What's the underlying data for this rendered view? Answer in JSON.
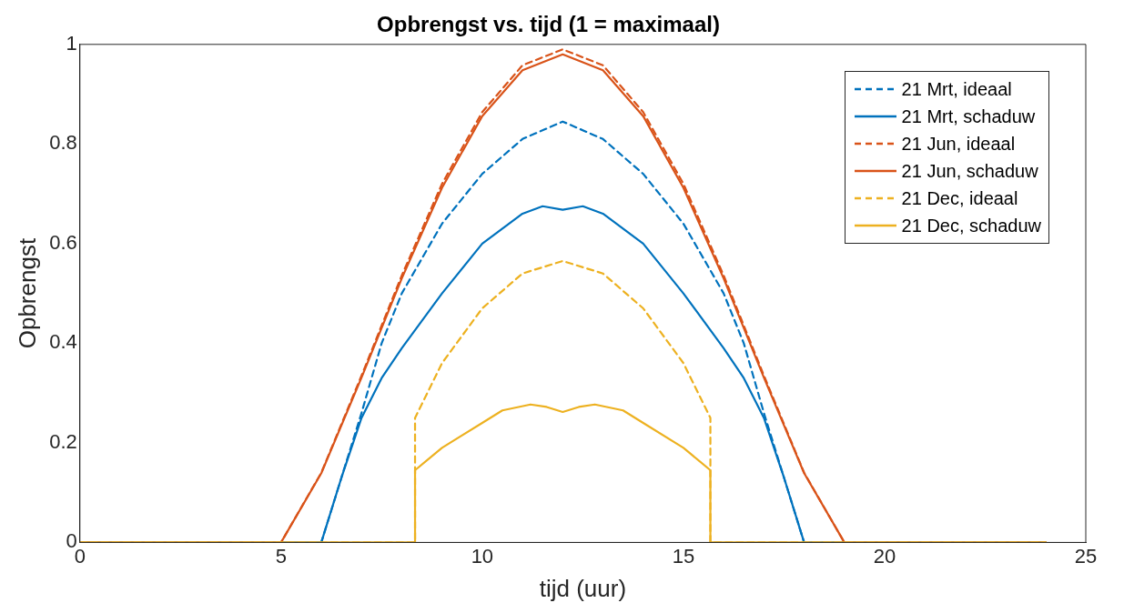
{
  "chart_data": {
    "type": "line",
    "title": "Opbrengst vs. tijd (1 = maximaal)",
    "xlabel": "tijd (uur)",
    "ylabel": "Opbrengst",
    "xlim": [
      0,
      25
    ],
    "ylim": [
      0,
      1
    ],
    "xticks": [
      0,
      5,
      10,
      15,
      20,
      25
    ],
    "yticks": [
      0,
      0.2,
      0.4,
      0.6,
      0.8,
      1
    ],
    "grid": false,
    "legend": "top right",
    "marker": "none",
    "series": [
      {
        "name": "21 Mrt, ideaal",
        "color": "#0072bd",
        "line_style": "dashed",
        "x": [
          0,
          6,
          6.5,
          7,
          7.5,
          8,
          9,
          10,
          11,
          12,
          13,
          14,
          15,
          16,
          16.5,
          17,
          17.5,
          18,
          24
        ],
        "values": [
          0,
          0,
          0.13,
          0.26,
          0.4,
          0.5,
          0.64,
          0.74,
          0.81,
          0.845,
          0.81,
          0.74,
          0.64,
          0.5,
          0.4,
          0.26,
          0.13,
          0,
          0
        ]
      },
      {
        "name": "21 Mrt, schaduw",
        "color": "#0072bd",
        "line_style": "solid",
        "x": [
          0,
          6,
          6.5,
          7,
          7.5,
          8,
          9,
          10,
          11,
          11.5,
          12,
          12.5,
          13,
          14,
          15,
          16,
          16.5,
          17,
          17.5,
          18,
          24
        ],
        "values": [
          0,
          0,
          0.13,
          0.25,
          0.33,
          0.39,
          0.5,
          0.6,
          0.66,
          0.675,
          0.668,
          0.675,
          0.66,
          0.6,
          0.5,
          0.39,
          0.33,
          0.25,
          0.13,
          0,
          0
        ]
      },
      {
        "name": "21 Jun, ideaal",
        "color": "#d95319",
        "line_style": "dashed",
        "x": [
          0,
          5,
          6,
          7,
          8,
          9,
          10,
          11,
          12,
          13,
          14,
          15,
          16,
          17,
          18,
          19,
          24
        ],
        "values": [
          0,
          0,
          0.14,
          0.335,
          0.536,
          0.72,
          0.864,
          0.958,
          0.99,
          0.958,
          0.864,
          0.72,
          0.536,
          0.335,
          0.14,
          0,
          0
        ]
      },
      {
        "name": "21 Jun, schaduw",
        "color": "#d95319",
        "line_style": "solid",
        "x": [
          0,
          5,
          6,
          7,
          8,
          9,
          10,
          11,
          12,
          13,
          14,
          15,
          16,
          17,
          18,
          19,
          24
        ],
        "values": [
          0,
          0,
          0.139,
          0.331,
          0.53,
          0.712,
          0.856,
          0.948,
          0.98,
          0.948,
          0.856,
          0.712,
          0.53,
          0.331,
          0.139,
          0,
          0
        ]
      },
      {
        "name": "21 Dec, ideaal",
        "color": "#edb120",
        "line_style": "dashed",
        "x": [
          0,
          8.33,
          8.33,
          9,
          10,
          11,
          12,
          13,
          14,
          15,
          15.67,
          15.67,
          24
        ],
        "values": [
          0,
          0,
          0.25,
          0.36,
          0.47,
          0.54,
          0.565,
          0.54,
          0.47,
          0.36,
          0.25,
          0,
          0
        ]
      },
      {
        "name": "21 Dec, schaduw",
        "color": "#edb120",
        "line_style": "solid",
        "x": [
          0,
          8.33,
          8.33,
          9,
          10,
          10.5,
          11.2,
          11.6,
          12,
          12.4,
          12.8,
          13.5,
          14,
          15,
          15.67,
          15.67,
          24
        ],
        "values": [
          0,
          0,
          0.145,
          0.19,
          0.24,
          0.265,
          0.277,
          0.272,
          0.262,
          0.272,
          0.277,
          0.265,
          0.24,
          0.19,
          0.145,
          0,
          0
        ]
      }
    ]
  }
}
